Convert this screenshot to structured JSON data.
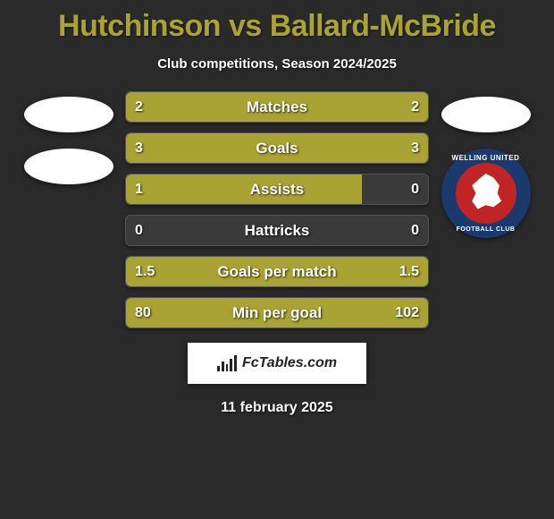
{
  "title": "Hutchinson vs Ballard-McBride",
  "subtitle": "Club competitions, Season 2024/2025",
  "date": "11 february 2025",
  "source": {
    "text": "FcTables.com"
  },
  "crest": {
    "top_text": "WELLING UNITED",
    "bottom_text": "FOOTBALL CLUB",
    "outer_color": "#1a3a6e",
    "inner_color": "#c02424"
  },
  "colors": {
    "background": "#2a2a2a",
    "accent": "#a8a332",
    "bar_empty": "#3a3a3a",
    "title_color": "#a8a332"
  },
  "rows": [
    {
      "label": "Matches",
      "left_val": "2",
      "right_val": "2",
      "left_pct": 50,
      "right_pct": 50
    },
    {
      "label": "Goals",
      "left_val": "3",
      "right_val": "3",
      "left_pct": 50,
      "right_pct": 50
    },
    {
      "label": "Assists",
      "left_val": "1",
      "right_val": "0",
      "left_pct": 78,
      "right_pct": 0
    },
    {
      "label": "Hattricks",
      "left_val": "0",
      "right_val": "0",
      "left_pct": 0,
      "right_pct": 0
    },
    {
      "label": "Goals per match",
      "left_val": "1.5",
      "right_val": "1.5",
      "left_pct": 50,
      "right_pct": 50
    },
    {
      "label": "Min per goal",
      "left_val": "80",
      "right_val": "102",
      "left_pct": 50,
      "right_pct": 50
    }
  ]
}
